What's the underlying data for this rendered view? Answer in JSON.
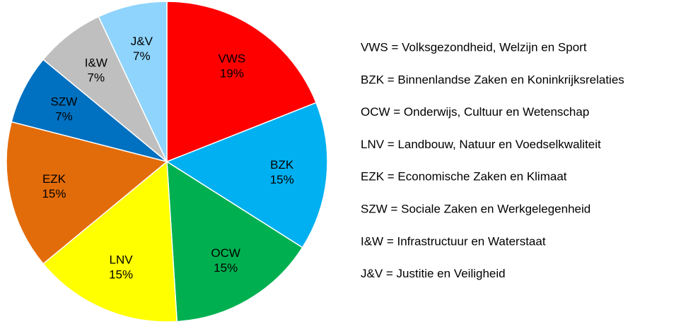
{
  "chart_data": {
    "type": "pie",
    "categories": [
      "VWS",
      "BZK",
      "OCW",
      "LNV",
      "EZK",
      "SZW",
      "I&W",
      "J&V"
    ],
    "values": [
      19,
      15,
      15,
      15,
      15,
      7,
      7,
      7
    ],
    "value_labels": [
      "19%",
      "15%",
      "15%",
      "15%",
      "15%",
      "7%",
      "7%",
      "7%"
    ],
    "colors": [
      "#ff0000",
      "#00b0f0",
      "#00b050",
      "#ffff00",
      "#e36c0a",
      "#0070c0",
      "#bfbfbf",
      "#8fd4fc"
    ],
    "legend": [
      "VWS = Volksgezondheid, Welzijn en Sport",
      "BZK = Binnenlandse Zaken en Koninkrijksrelaties",
      "OCW = Onderwijs, Cultuur en Wetenschap",
      "LNV = Landbouw, Natuur en Voedselkwaliteit",
      "EZK = Economische Zaken en Klimaat",
      "SZW = Sociale Zaken en Werkgelegenheid",
      "I&W = Infrastructuur en Waterstaat",
      "J&V = Justitie en Veiligheid"
    ]
  }
}
